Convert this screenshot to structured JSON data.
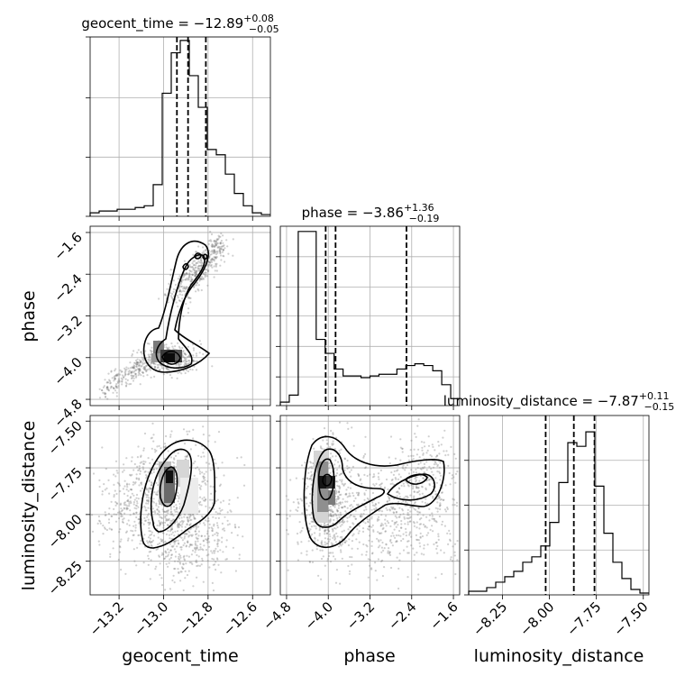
{
  "chart_data": {
    "type": "corner",
    "parameters": [
      "geocent_time",
      "phase",
      "luminosity_distance"
    ],
    "grid": true,
    "titles": [
      {
        "param": "geocent_time",
        "text": "geocent_time = −12.89",
        "sup": "+0.08",
        "sub": "−0.05"
      },
      {
        "param": "phase",
        "text": "phase = −3.86",
        "sup": "+1.36",
        "sub": "−0.19"
      },
      {
        "param": "luminosity_distance",
        "text": "luminosity_distance = −7.87",
        "sup": "+0.11",
        "sub": "−0.15"
      }
    ],
    "ranges": {
      "geocent_time": [
        -13.33,
        -12.52
      ],
      "phase": [
        -4.92,
        -1.48
      ],
      "luminosity_distance": [
        -8.43,
        -7.47
      ]
    },
    "ticks": {
      "geocent_time": [
        -13.2,
        -13.0,
        -12.8,
        -12.6
      ],
      "phase": [
        -4.8,
        -4.0,
        -3.2,
        -2.4,
        -1.6
      ],
      "luminosity_distance": [
        -8.25,
        -8.0,
        -7.75,
        -7.5
      ]
    },
    "tick_labels": {
      "geocent_time": [
        "−13.2",
        "−13.0",
        "−12.8",
        "−12.6"
      ],
      "phase": [
        "−4.8",
        "−4.0",
        "−3.2",
        "−2.4",
        "−1.6"
      ],
      "luminosity_distance": [
        "−8.25",
        "−8.00",
        "−7.75",
        "−7.50"
      ]
    },
    "quantiles": {
      "geocent_time": [
        -12.94,
        -12.89,
        -12.81
      ],
      "phase": [
        -4.05,
        -3.86,
        -2.5
      ],
      "luminosity_distance": [
        -8.02,
        -7.87,
        -7.76
      ]
    },
    "histograms": {
      "geocent_time": {
        "range": [
          -13.33,
          -12.52
        ],
        "counts": [
          0.02,
          0.03,
          0.03,
          0.04,
          0.04,
          0.05,
          0.06,
          0.18,
          0.7,
          0.93,
          1.0,
          0.8,
          0.62,
          0.38,
          0.35,
          0.24,
          0.13,
          0.06,
          0.02,
          0.01
        ]
      },
      "phase": {
        "range": [
          -4.92,
          -1.48
        ],
        "counts": [
          0.02,
          0.06,
          1.0,
          1.0,
          0.38,
          0.3,
          0.21,
          0.17,
          0.17,
          0.16,
          0.17,
          0.18,
          0.18,
          0.21,
          0.23,
          0.24,
          0.23,
          0.2,
          0.12,
          0.04
        ]
      },
      "luminosity_distance": {
        "range": [
          -8.43,
          -7.47
        ],
        "counts": [
          0.02,
          0.02,
          0.04,
          0.07,
          0.1,
          0.13,
          0.18,
          0.21,
          0.27,
          0.4,
          0.62,
          0.84,
          0.82,
          0.9,
          0.6,
          0.34,
          0.18,
          0.09,
          0.03,
          0.01
        ]
      }
    }
  }
}
